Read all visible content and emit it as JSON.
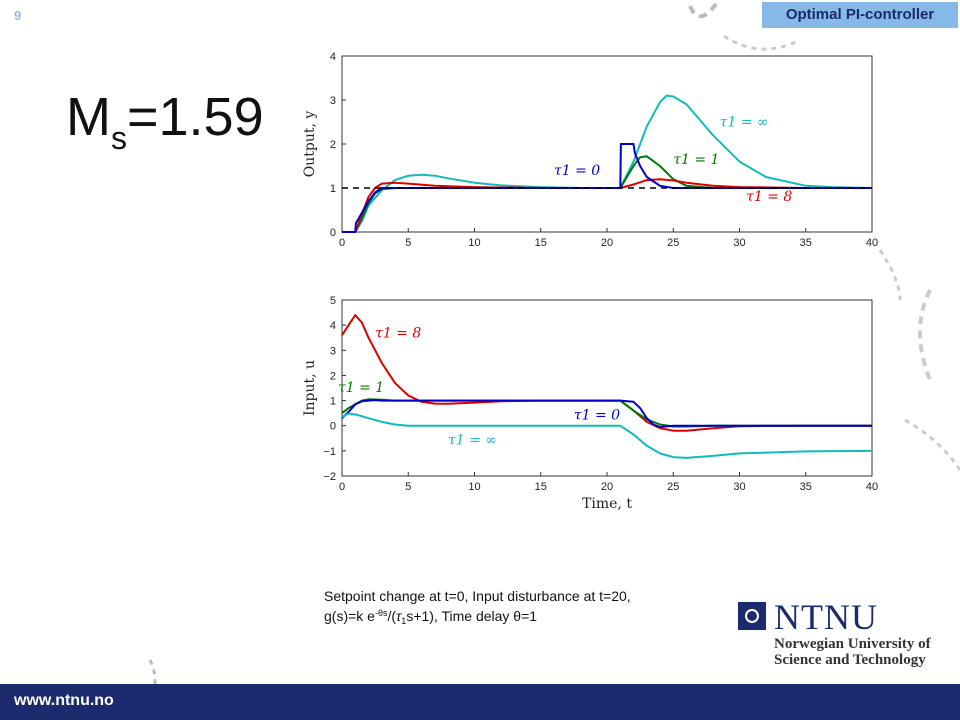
{
  "slide": {
    "number": "9",
    "badge": "Optimal PI-controller"
  },
  "ms": {
    "m": "M",
    "sub": "s",
    "value": "=1.59"
  },
  "caption": {
    "line1": "Setpoint change at t=0,  Input disturbance at t=20,",
    "l2a": "g(s)=k e",
    "l2sup": "-θs",
    "l2b": "/(",
    "l2tau": "τ",
    "l2sub": "1",
    "l2c": "s+1), Time delay θ=1"
  },
  "logo": {
    "name": "NTNU",
    "subtitle": "Norwegian University of Science and Technology"
  },
  "footer": {
    "url": "www.ntnu.no"
  },
  "colors": {
    "navy": "#1c2b6e",
    "badge": "#86b8e8",
    "tau0": "#0000cc",
    "tau1": "#007700",
    "tau8": "#dd0000",
    "tauinf": "#11bbbb"
  },
  "chart_data": [
    {
      "type": "line",
      "ylabel": "Output, y",
      "xlabel": "",
      "xlim": [
        0,
        40
      ],
      "ylim": [
        0,
        4
      ],
      "xticks": [
        0,
        5,
        10,
        15,
        20,
        25,
        30,
        35,
        40
      ],
      "yticks": [
        0,
        1,
        2,
        3,
        4
      ],
      "grid": false,
      "series": [
        {
          "name": "τ1 = ∞",
          "color": "#11bbbb",
          "x": [
            0,
            1,
            1.5,
            2,
            3,
            4,
            5,
            6,
            7,
            8,
            10,
            12,
            15,
            18,
            20,
            21,
            22,
            23,
            24,
            24.5,
            25,
            26,
            28,
            30,
            32,
            35,
            37,
            40
          ],
          "y": [
            0,
            0,
            0.25,
            0.6,
            0.95,
            1.18,
            1.28,
            1.3,
            1.28,
            1.22,
            1.12,
            1.06,
            1.02,
            1.0,
            1.0,
            1.0,
            1.6,
            2.4,
            2.95,
            3.1,
            3.08,
            2.9,
            2.2,
            1.6,
            1.25,
            1.05,
            1.02,
            1.0
          ]
        },
        {
          "name": "τ1 = 1",
          "color": "#007700",
          "x": [
            0,
            1,
            1.5,
            2,
            2.5,
            3,
            4,
            5,
            7,
            10,
            15,
            20,
            21,
            22,
            22.5,
            23,
            24,
            25,
            26,
            28,
            30,
            40
          ],
          "y": [
            0,
            0,
            0.3,
            0.65,
            0.88,
            0.97,
            1.0,
            1.0,
            1.0,
            1.0,
            1.0,
            1.0,
            1.0,
            1.5,
            1.7,
            1.72,
            1.5,
            1.2,
            1.05,
            1.0,
            1.0,
            1.0
          ]
        },
        {
          "name": "τ1 = 8",
          "color": "#dd0000",
          "x": [
            0,
            1,
            1.5,
            2,
            2.5,
            3,
            4,
            5,
            7,
            10,
            15,
            20,
            21,
            22,
            23,
            24,
            25,
            26,
            28,
            30,
            35,
            40
          ],
          "y": [
            0,
            0,
            0.4,
            0.8,
            1.0,
            1.1,
            1.12,
            1.1,
            1.05,
            1.02,
            1.0,
            1.0,
            1.0,
            1.08,
            1.18,
            1.2,
            1.17,
            1.12,
            1.05,
            1.02,
            1.0,
            1.0
          ]
        },
        {
          "name": "τ1 = 0",
          "color": "#0000cc",
          "x": [
            0,
            1,
            1.05,
            2,
            2.5,
            3,
            5,
            10,
            15,
            20,
            21,
            21.05,
            22,
            22.1,
            22.5,
            23,
            24,
            25,
            30,
            40
          ],
          "y": [
            0,
            0,
            0.2,
            0.7,
            0.9,
            1.0,
            1.0,
            1.0,
            1.0,
            1.0,
            1.0,
            2.0,
            2.0,
            1.8,
            1.5,
            1.25,
            1.05,
            1.0,
            1.0,
            1.0
          ]
        },
        {
          "name": "setpoint",
          "color": "#000000",
          "dashed": true,
          "x": [
            0,
            40
          ],
          "y": [
            1,
            1
          ]
        }
      ],
      "annotations": [
        {
          "text": "τ1 = ∞",
          "x": 28.5,
          "y": 2.4,
          "color": "#11bbbb"
        },
        {
          "text": "τ1 = 1",
          "x": 25.0,
          "y": 1.55,
          "color": "#007700"
        },
        {
          "text": "τ1 = 0",
          "x": 16.0,
          "y": 1.3,
          "color": "#0000cc"
        },
        {
          "text": "τ1 = 8",
          "x": 30.5,
          "y": 0.7,
          "color": "#dd0000"
        }
      ]
    },
    {
      "type": "line",
      "ylabel": "Input, u",
      "xlabel": "Time, t",
      "xlim": [
        0,
        40
      ],
      "ylim": [
        -2,
        5
      ],
      "xticks": [
        0,
        5,
        10,
        15,
        20,
        25,
        30,
        35,
        40
      ],
      "yticks": [
        -2,
        -1,
        0,
        1,
        2,
        3,
        4,
        5
      ],
      "grid": false,
      "series": [
        {
          "name": "τ1 = 8",
          "color": "#dd0000",
          "x": [
            0,
            0.5,
            1,
            1.5,
            2,
            3,
            4,
            5,
            6,
            7,
            8,
            10,
            12,
            15,
            18,
            20,
            21,
            22,
            23,
            24,
            25,
            26,
            28,
            30,
            35,
            40
          ],
          "y": [
            3.6,
            4.0,
            4.4,
            4.1,
            3.5,
            2.5,
            1.7,
            1.2,
            0.95,
            0.88,
            0.87,
            0.92,
            0.97,
            1.0,
            1.0,
            1.0,
            1.0,
            0.6,
            0.15,
            -0.1,
            -0.2,
            -0.2,
            -0.1,
            -0.02,
            0.0,
            0.0
          ]
        },
        {
          "name": "τ1 = 1",
          "color": "#007700",
          "x": [
            0,
            0.5,
            1,
            1.5,
            2,
            3,
            4,
            5,
            10,
            15,
            20,
            21,
            22,
            23,
            24,
            25,
            26,
            28,
            30,
            40
          ],
          "y": [
            0.5,
            0.7,
            0.85,
            1.0,
            1.05,
            1.03,
            1.0,
            1.0,
            1.0,
            1.0,
            1.0,
            1.0,
            0.6,
            0.25,
            0.05,
            -0.03,
            -0.03,
            0.0,
            0.0,
            0.0
          ]
        },
        {
          "name": "τ1 = 0",
          "color": "#0000cc",
          "x": [
            0,
            0.5,
            1,
            1.5,
            2,
            2.5,
            3,
            4,
            5,
            10,
            15,
            20,
            21,
            22,
            22.5,
            23,
            23.5,
            24,
            25,
            26,
            30,
            40
          ],
          "y": [
            0.3,
            0.55,
            0.85,
            0.97,
            1.0,
            1.02,
            1.0,
            1.0,
            1.0,
            1.0,
            1.0,
            1.0,
            1.0,
            0.95,
            0.7,
            0.3,
            0.05,
            -0.05,
            0.0,
            0.0,
            0.0,
            0.0
          ]
        },
        {
          "name": "τ1 = ∞",
          "color": "#11bbbb",
          "x": [
            0,
            0.5,
            1,
            1.5,
            2,
            3,
            4,
            5,
            7,
            10,
            15,
            20,
            21,
            22,
            23,
            24,
            25,
            26,
            28,
            30,
            35,
            40
          ],
          "y": [
            0.35,
            0.48,
            0.45,
            0.38,
            0.3,
            0.15,
            0.05,
            0.0,
            0.0,
            0.0,
            0.0,
            0.0,
            0.0,
            -0.35,
            -0.8,
            -1.1,
            -1.25,
            -1.28,
            -1.2,
            -1.1,
            -1.02,
            -1.0
          ]
        }
      ],
      "annotations": [
        {
          "text": "τ1 = 8",
          "x": 2.5,
          "y": 3.5,
          "color": "#dd0000"
        },
        {
          "text": "τ1 = 1",
          "x": -0.3,
          "y": 1.35,
          "color": "#007700"
        },
        {
          "text": "τ1 = 0",
          "x": 17.5,
          "y": 0.25,
          "color": "#0000cc"
        },
        {
          "text": "τ1 = ∞",
          "x": 8.0,
          "y": -0.75,
          "color": "#11bbbb"
        }
      ]
    }
  ]
}
